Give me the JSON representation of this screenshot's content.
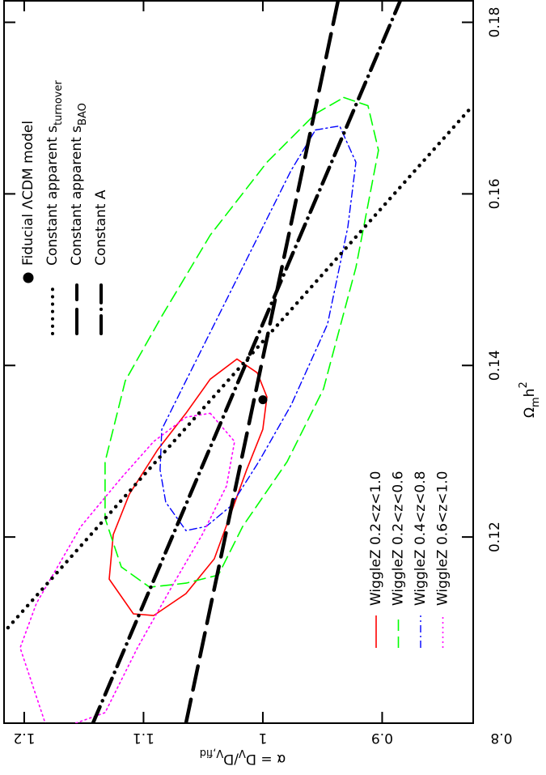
{
  "chart_data": {
    "type": "contour",
    "x_label_parts": [
      {
        "text": "Ω"
      },
      {
        "text": "m",
        "shift": "sub"
      },
      {
        "text": "h"
      },
      {
        "text": "2",
        "shift": "super"
      }
    ],
    "y_label_parts": [
      {
        "text": "α = D"
      },
      {
        "text": "V",
        "shift": "sub"
      },
      {
        "text": "/D"
      },
      {
        "text": "V,fid",
        "shift": "sub"
      }
    ],
    "xlim": [
      0.0983,
      0.1826
    ],
    "ylim": [
      0.8237,
      1.2169
    ],
    "xticks": [
      0.12,
      0.14,
      0.16,
      0.18
    ],
    "yticks": [
      0.8,
      0.9,
      1,
      1.1,
      1.2
    ],
    "fiducial": {
      "name": "Fiducial ΛCDM model",
      "x": 0.136,
      "value": 1,
      "color": "#000000"
    },
    "series": [
      {
        "name": "WiggleZ 0.2<z<1.0",
        "color": "#ff0000",
        "style": "solid",
        "closed": true,
        "x": [
          0.14075,
          0.13915,
          0.13632,
          0.13255,
          0.12783,
          0.12264,
          0.11745,
          0.1134,
          0.11085,
          0.11104,
          0.11509,
          0.12028,
          0.125,
          0.13019,
          0.13443,
          0.1384
        ],
        "values": [
          1.0217,
          1.0047,
          0.9966,
          1.0,
          1.0136,
          1.0271,
          1.0407,
          1.0644,
          1.0915,
          1.1085,
          1.1288,
          1.1254,
          1.1119,
          1.0881,
          1.0644,
          1.0441
        ]
      },
      {
        "name": "WiggleZ 0.2<z<0.6",
        "color": "#00ff00",
        "style": "dashed",
        "closed": true,
        "x": [
          0.17123,
          0.17028,
          0.16509,
          0.15142,
          0.13726,
          0.12877,
          0.12123,
          0.11557,
          0.11462,
          0.11415,
          0.11651,
          0.12217,
          0.12877,
          0.13821,
          0.14575,
          0.15519,
          0.16368,
          0.16934
        ],
        "values": [
          0.9322,
          0.9119,
          0.9031,
          0.922,
          0.9492,
          0.9797,
          1.0169,
          1.0373,
          1.0644,
          1.0949,
          1.1186,
          1.1322,
          1.1322,
          1.1153,
          1.0847,
          1.0441,
          0.9966,
          0.9559
        ]
      },
      {
        "name": "WiggleZ 0.4<z<0.8",
        "color": "#0000ff",
        "style": "dashdot",
        "closed": true,
        "x": [
          0.16745,
          0.16792,
          0.16368,
          0.15613,
          0.14481,
          0.13538,
          0.12877,
          0.12358,
          0.12123,
          0.12075,
          0.12406,
          0.12783,
          0.13255,
          0.13821,
          0.14575,
          0.15519,
          0.16274
        ],
        "values": [
          0.9559,
          0.9356,
          0.922,
          0.9288,
          0.9458,
          0.9763,
          1.0034,
          1.0271,
          1.0475,
          1.0644,
          1.0814,
          1.0861,
          1.0847,
          1.0644,
          1.0373,
          1.0034,
          0.9763
        ]
      },
      {
        "name": "WiggleZ 0.6<z<1.0",
        "color": "#ff00ff",
        "style": "dotted",
        "closed": true,
        "x": [
          0.13443,
          0.13113,
          0.12594,
          0.12028,
          0.11462,
          0.10708,
          0.09953,
          0.09717,
          0.10708,
          0.11226,
          0.12123,
          0.12689,
          0.13113,
          0.13396
        ],
        "values": [
          1.0441,
          1.0237,
          1.0305,
          1.0508,
          1.0746,
          1.1051,
          1.1322,
          1.1797,
          1.2034,
          1.1898,
          1.1525,
          1.1186,
          1.0915,
          1.0644
        ]
      },
      {
        "name": "Constant apparent s",
        "subscript": "turnover",
        "color": "#000000",
        "style": "bold-dotted",
        "closed": false,
        "x": [
          0.10943,
          0.16981
        ],
        "values": [
          1.2136,
          0.8271
        ]
      },
      {
        "name": "Constant apparent s",
        "subscript": "BAO",
        "color": "#000000",
        "style": "bold-dashed",
        "closed": false,
        "x": [
          0.0983,
          0.18255
        ],
        "values": [
          1.0644,
          0.9369
        ]
      },
      {
        "name": "Constant A",
        "color": "#000000",
        "style": "bold-dashdot",
        "closed": false,
        "x": [
          0.0983,
          0.18255
        ],
        "values": [
          1.1424,
          0.8847
        ]
      }
    ]
  }
}
